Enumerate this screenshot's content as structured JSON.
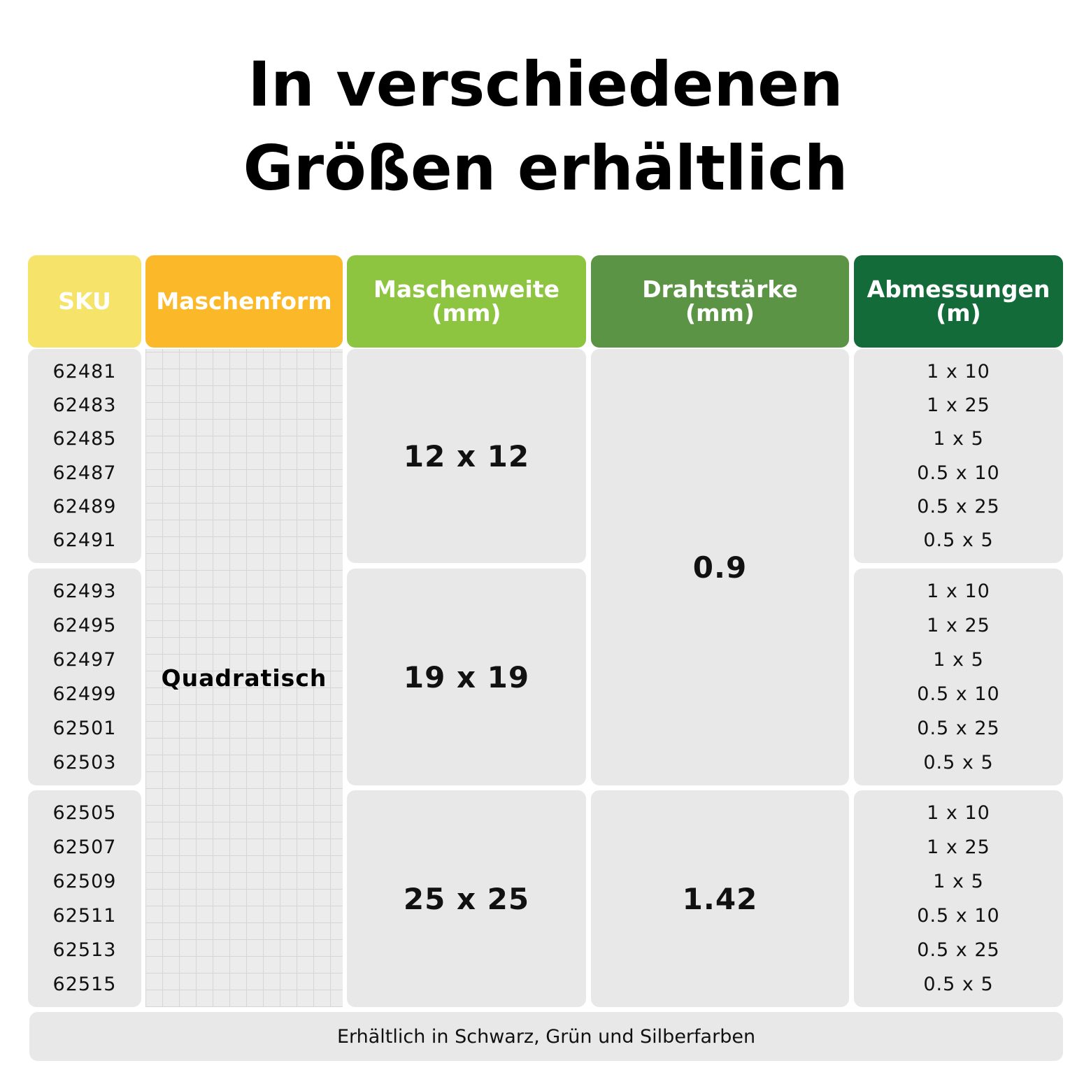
{
  "title": [
    "In verschiedenen",
    "Größen erhältlich"
  ],
  "table": {
    "headers": [
      "SKU",
      "Maschenform",
      "Maschenweite (mm)",
      "Drahtstärke (mm)",
      "Abmessungen (m)"
    ],
    "mesh_shape": "Quadratisch",
    "groups": [
      {
        "skus": [
          "62481",
          "62483",
          "62485",
          "62487",
          "62489",
          "62491"
        ],
        "mesh_size": "12 x 12",
        "dimensions": [
          "1 x 10",
          "1 x 25",
          "1 x 5",
          "0.5 x 10",
          "0.5 x 25",
          "0.5 x 5"
        ]
      },
      {
        "skus": [
          "62493",
          "62495",
          "62497",
          "62499",
          "62501",
          "62503"
        ],
        "mesh_size": "19 x 19",
        "dimensions": [
          "1 x 10",
          "1 x 25",
          "1 x 5",
          "0.5 x 10",
          "0.5 x 25",
          "0.5 x 5"
        ]
      },
      {
        "skus": [
          "62505",
          "62507",
          "62509",
          "62511",
          "62513",
          "62515"
        ],
        "mesh_size": "25 x 25",
        "dimensions": [
          "1 x 10",
          "1 x 25",
          "1 x 5",
          "0.5 x 10",
          "0.5 x 25",
          "0.5 x 5"
        ]
      }
    ],
    "wire_thickness": [
      "0.9",
      "1.42"
    ]
  },
  "footer": "Erhältlich in Schwarz, Grün und Silberfarben"
}
